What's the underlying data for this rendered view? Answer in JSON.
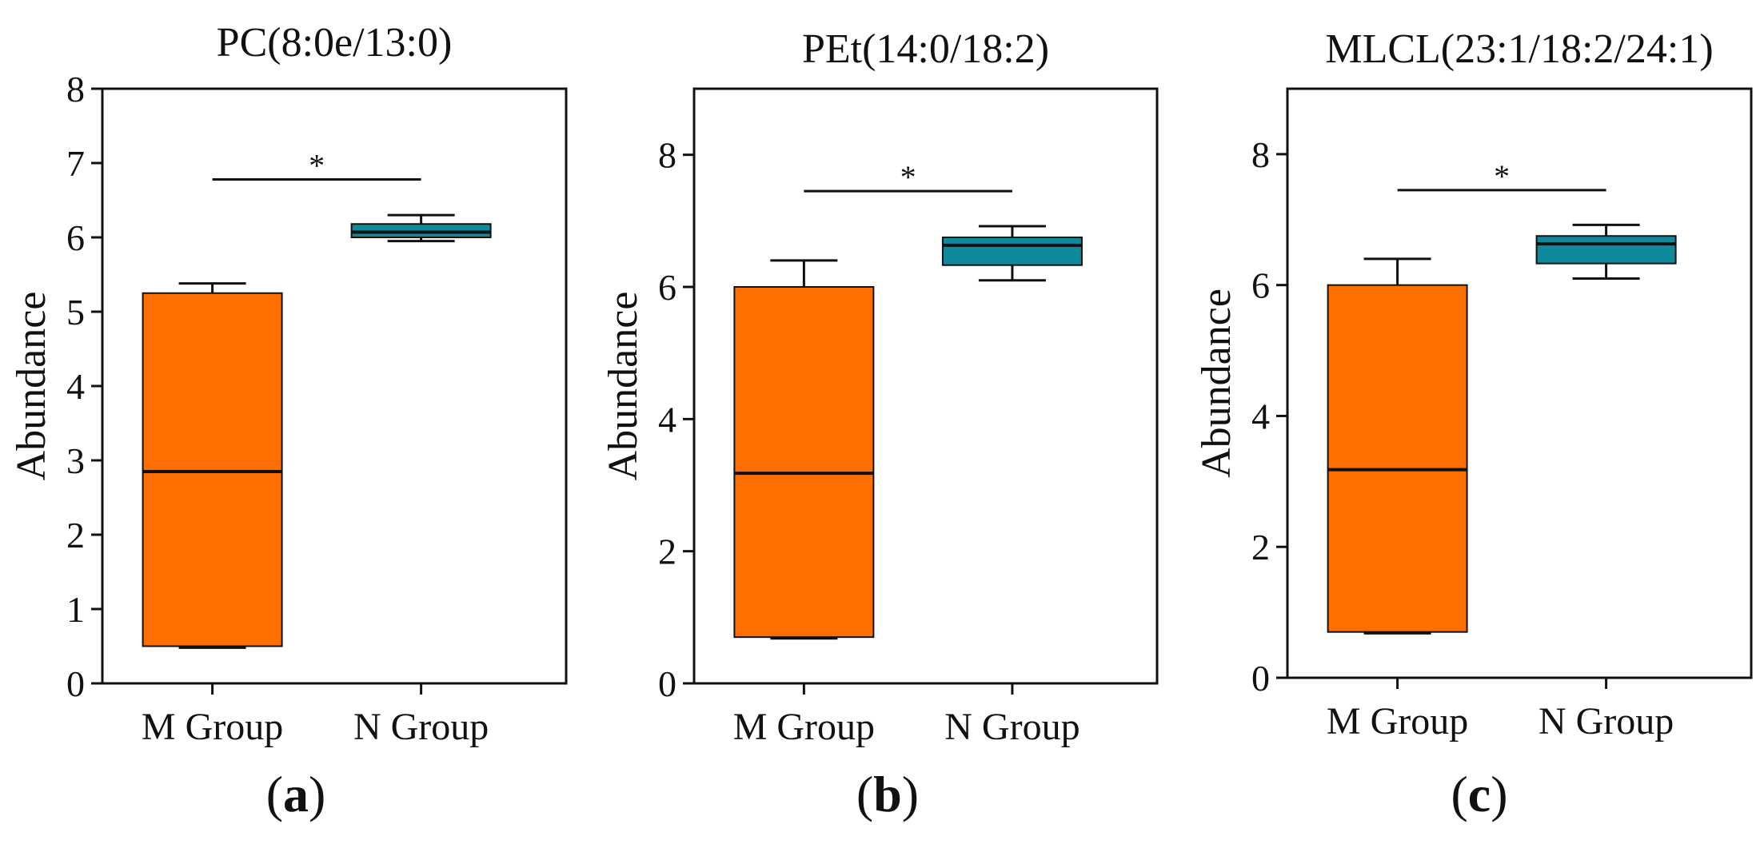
{
  "chart_data": [
    {
      "type": "box",
      "panel_label": "a",
      "title": "PC(8:0e/13:0)",
      "xlabel": "",
      "ylabel": "Abundance",
      "ylim": [
        0,
        8
      ],
      "yticks": [
        0,
        1,
        2,
        3,
        4,
        5,
        6,
        7,
        8
      ],
      "categories": [
        "M Group",
        "N Group"
      ],
      "series": [
        {
          "name": "M Group",
          "color": "#FF6F00",
          "whisker_low": 0.48,
          "q1": 0.5,
          "median": 2.85,
          "q3": 5.25,
          "whisker_high": 5.38
        },
        {
          "name": "N Group",
          "color": "#0E8A9C",
          "whisker_low": 5.95,
          "q1": 6.0,
          "median": 6.07,
          "q3": 6.18,
          "whisker_high": 6.3
        }
      ],
      "significance": {
        "between": [
          "M Group",
          "N Group"
        ],
        "label": "*",
        "y": 6.78
      }
    },
    {
      "type": "box",
      "panel_label": "b",
      "title": "PEt(14:0/18:2)",
      "xlabel": "",
      "ylabel": "Abundance",
      "ylim": [
        0,
        9
      ],
      "yticks": [
        0,
        2,
        4,
        6,
        8
      ],
      "categories": [
        "M Group",
        "N Group"
      ],
      "series": [
        {
          "name": "M Group",
          "color": "#FF6F00",
          "whisker_low": 0.68,
          "q1": 0.7,
          "median": 3.18,
          "q3": 6.0,
          "whisker_high": 6.4
        },
        {
          "name": "N Group",
          "color": "#0E8A9C",
          "whisker_low": 6.1,
          "q1": 6.33,
          "median": 6.63,
          "q3": 6.75,
          "whisker_high": 6.92
        }
      ],
      "significance": {
        "between": [
          "M Group",
          "N Group"
        ],
        "label": "*",
        "y": 7.45
      }
    },
    {
      "type": "box",
      "panel_label": "c",
      "title": "MLCL(23:1/18:2/24:1)",
      "xlabel": "",
      "ylabel": "Abundance",
      "ylim": [
        0,
        9
      ],
      "yticks": [
        0,
        2,
        4,
        6,
        8
      ],
      "categories": [
        "M Group",
        "N Group"
      ],
      "series": [
        {
          "name": "M Group",
          "color": "#FF6F00",
          "whisker_low": 0.68,
          "q1": 0.7,
          "median": 3.18,
          "q3": 6.0,
          "whisker_high": 6.4
        },
        {
          "name": "N Group",
          "color": "#0E8A9C",
          "whisker_low": 6.1,
          "q1": 6.33,
          "median": 6.63,
          "q3": 6.75,
          "whisker_high": 6.92
        }
      ],
      "significance": {
        "between": [
          "M Group",
          "N Group"
        ],
        "label": "*",
        "y": 7.45
      }
    }
  ]
}
